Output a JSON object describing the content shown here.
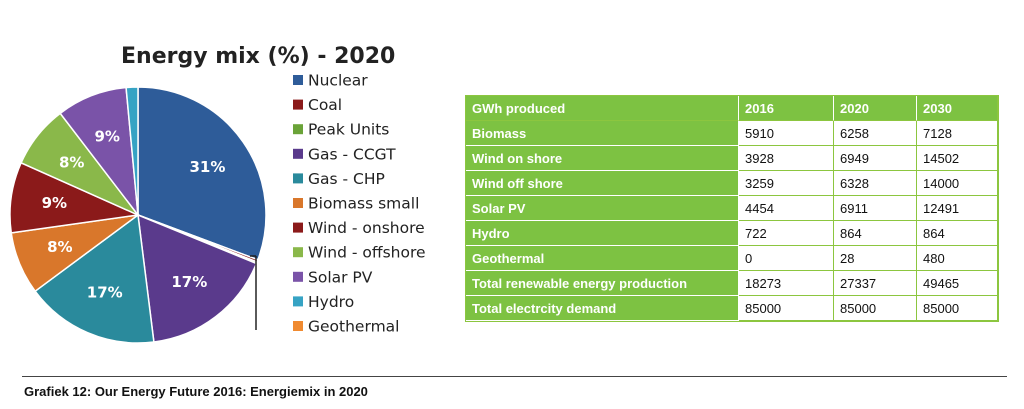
{
  "chart_data": {
    "type": "pie",
    "title": "Energy mix (%) - 2020",
    "slices": [
      {
        "name": "Nuclear",
        "value": 31,
        "label": "31%",
        "color": "#2e5c99"
      },
      {
        "name": "Coal",
        "value": 0.3,
        "label": "",
        "color": "#8b1a1a"
      },
      {
        "name": "Peak Units",
        "value": 0.2,
        "label": "",
        "color": "#6aa338"
      },
      {
        "name": "Gas - CCGT",
        "value": 17,
        "label": "17%",
        "color": "#5a3a8c"
      },
      {
        "name": "Gas - CHP",
        "value": 17,
        "label": "17%",
        "color": "#2a8a9c"
      },
      {
        "name": "Biomass small",
        "value": 8,
        "label": "8%",
        "color": "#d9772b"
      },
      {
        "name": "Wind - onshore",
        "value": 9,
        "label": "9%",
        "color": "#8b1a1a"
      },
      {
        "name": "Wind - offshore",
        "value": 8,
        "label": "8%",
        "color": "#8ab84a"
      },
      {
        "name": "Solar PV",
        "value": 9,
        "label": "9%",
        "color": "#7a53a8"
      },
      {
        "name": "Hydro",
        "value": 1.5,
        "label": "",
        "color": "#36a3c4"
      },
      {
        "name": "Geothermal",
        "value": 0,
        "label": "",
        "color": "#f08a30"
      }
    ],
    "legend_placement": "right"
  },
  "table": {
    "headers": [
      "GWh produced",
      "2016",
      "2020",
      "2030"
    ],
    "rows": [
      {
        "label": "Biomass",
        "values": [
          "5910",
          "6258",
          "7128"
        ]
      },
      {
        "label": "Wind on shore",
        "values": [
          "3928",
          "6949",
          "14502"
        ]
      },
      {
        "label": "Wind off shore",
        "values": [
          "3259",
          "6328",
          "14000"
        ]
      },
      {
        "label": "Solar PV",
        "values": [
          "4454",
          "6911",
          "12491"
        ]
      },
      {
        "label": "Hydro",
        "values": [
          "722",
          "864",
          "864"
        ]
      },
      {
        "label": "Geothermal",
        "values": [
          "0",
          "28",
          "480"
        ]
      },
      {
        "label": "Total renewable energy production",
        "values": [
          "18273",
          "27337",
          "49465"
        ]
      },
      {
        "label": "Total electrcity demand",
        "values": [
          "85000",
          "85000",
          "85000"
        ]
      }
    ]
  },
  "caption": "Grafiek 12: Our Energy Future 2016: Energiemix in 2020"
}
